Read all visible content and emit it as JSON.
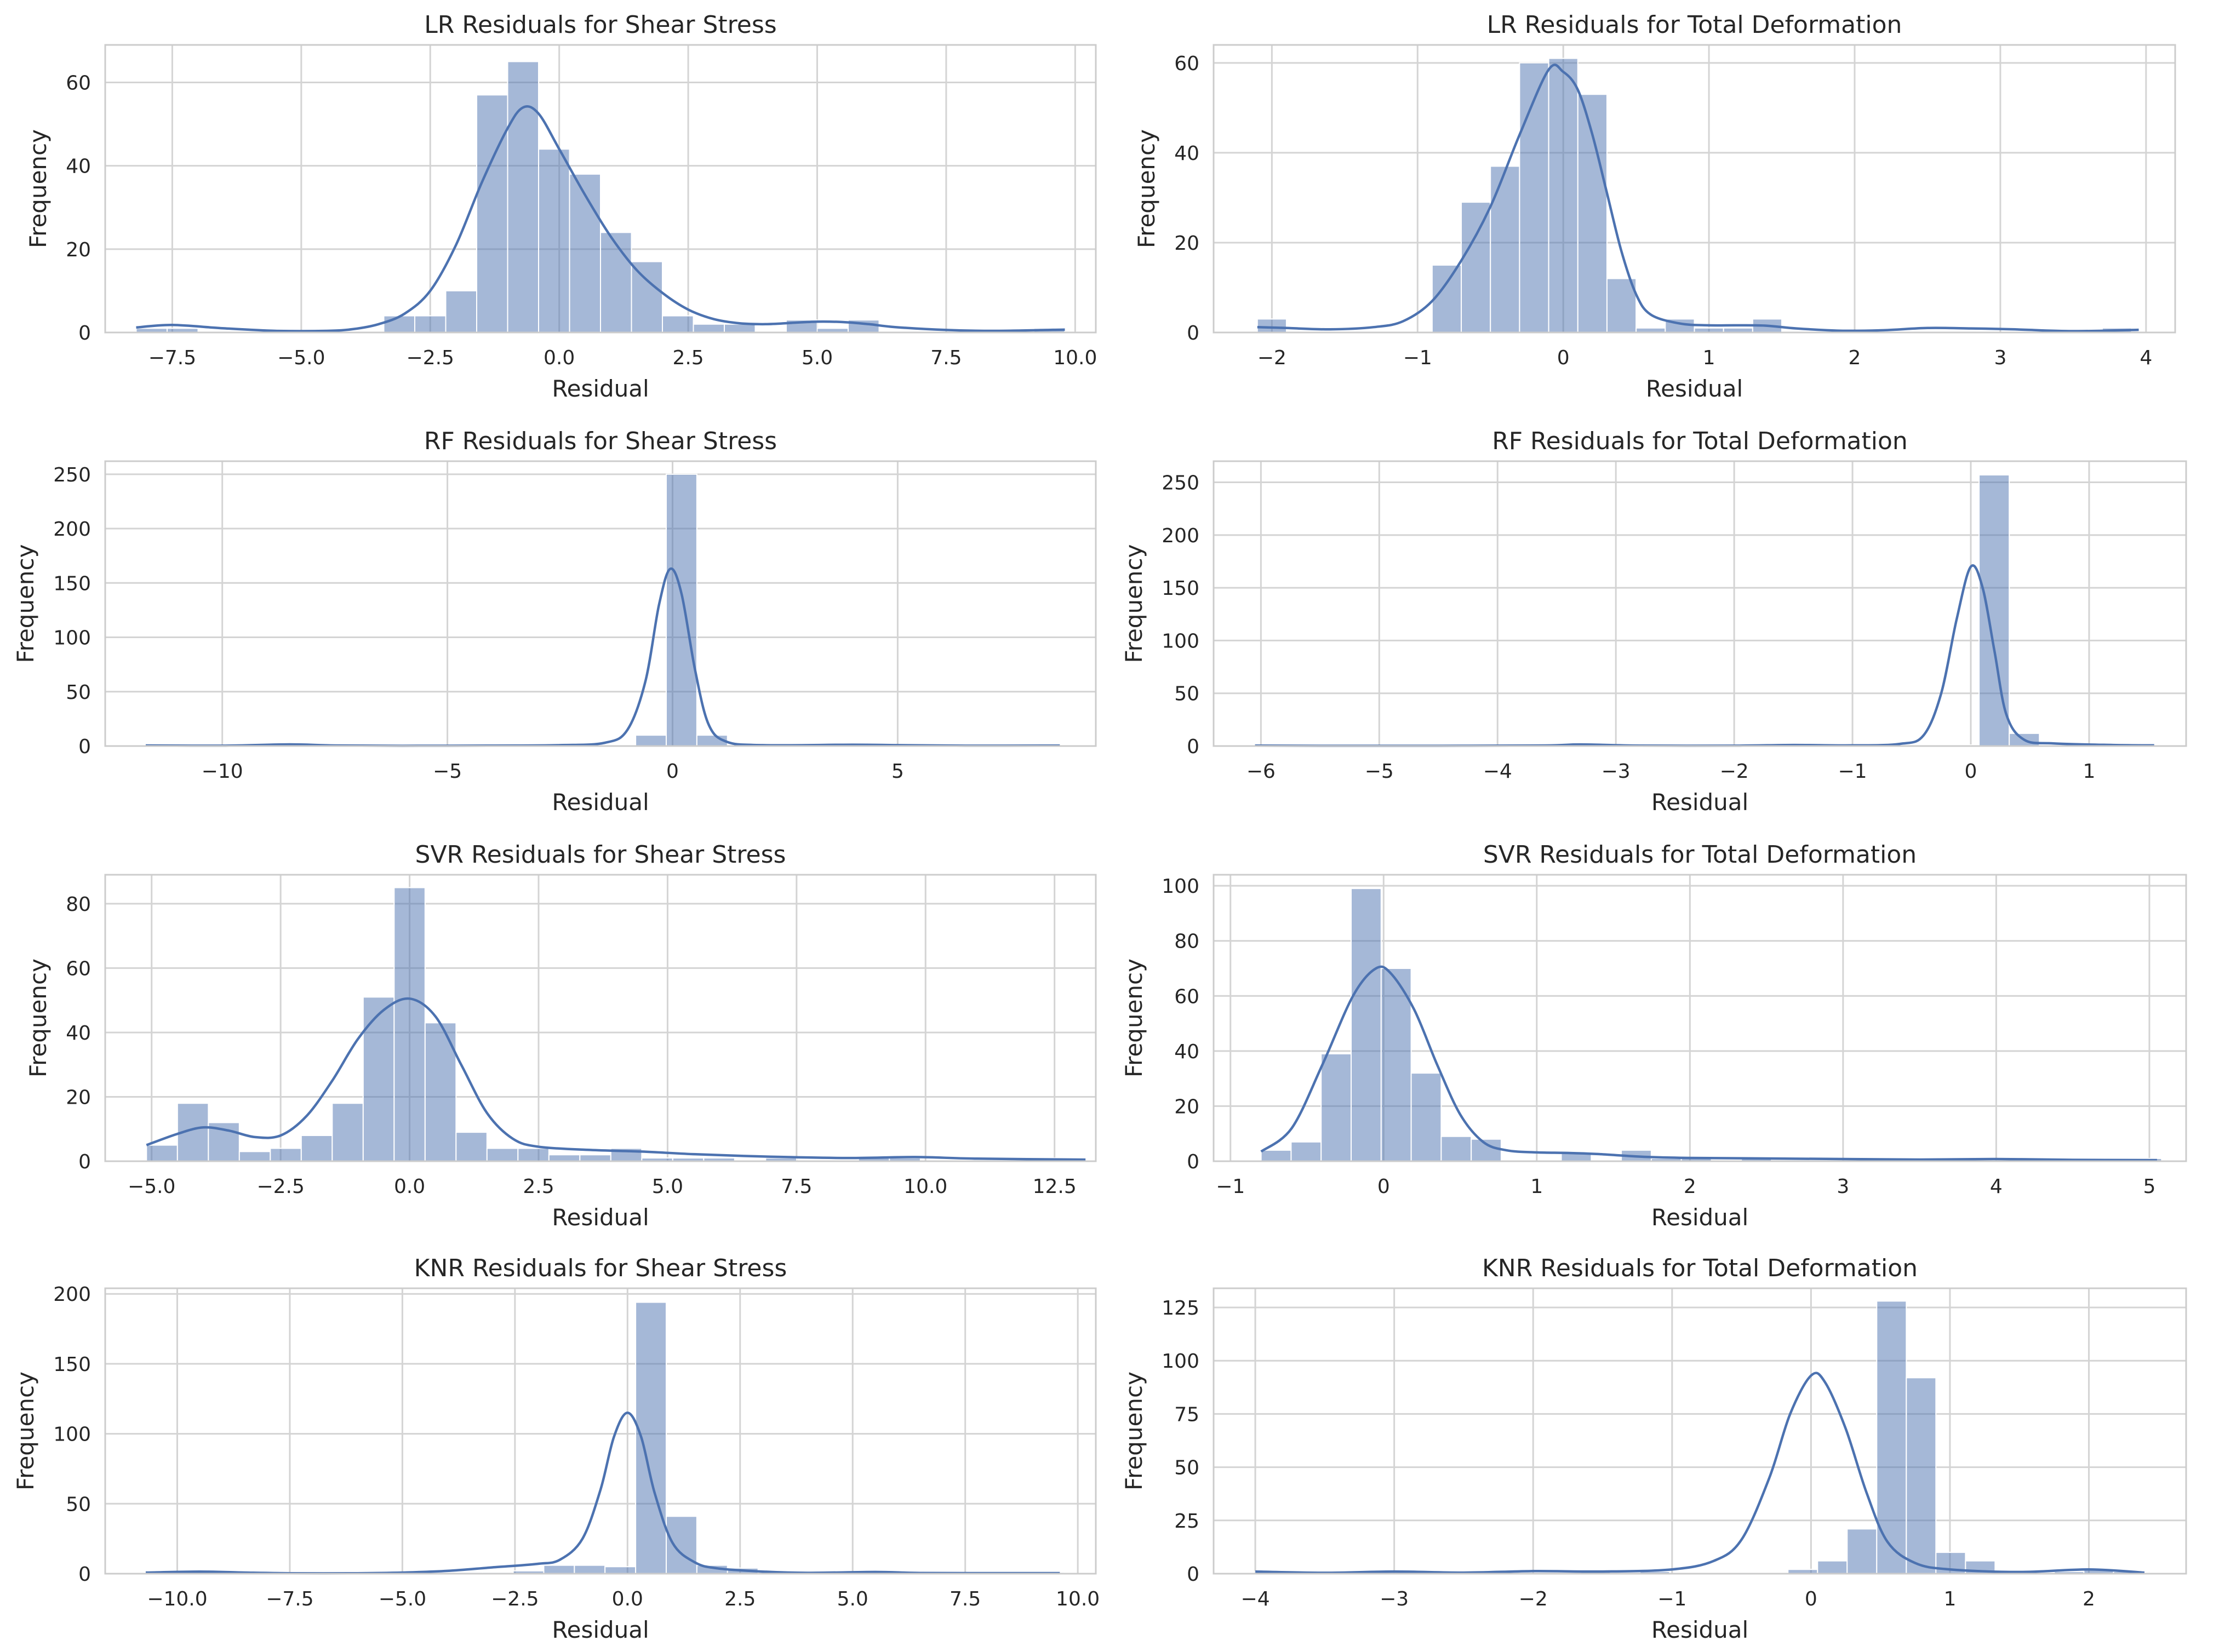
{
  "style": {
    "bar_color": "#4c72b0",
    "grid_color": "#d4d4d4",
    "frame_color": "#cccccc",
    "text_color": "#262626"
  },
  "chart_data": [
    {
      "type": "bar",
      "subtype": "histogram-with-kde",
      "title": "LR Residuals for Shear Stress",
      "xlabel": "Residual",
      "ylabel": "Frequency",
      "xlim": [
        -8.8,
        10.4
      ],
      "ylim": [
        0,
        69
      ],
      "xticks": [
        -7.5,
        -5.0,
        -2.5,
        0.0,
        2.5,
        5.0,
        7.5,
        10.0
      ],
      "xtick_labels": [
        "−7.5",
        "−5.0",
        "−2.5",
        "0.0",
        "2.5",
        "5.0",
        "7.5",
        "10.0"
      ],
      "yticks": [
        0,
        20,
        40,
        60
      ],
      "ytick_labels": [
        "0",
        "20",
        "40",
        "60"
      ],
      "bin_start": -8.2,
      "bin_width": 0.6,
      "values": [
        1,
        1,
        0,
        0,
        0,
        0,
        0,
        0,
        4,
        4,
        10,
        57,
        65,
        44,
        38,
        24,
        17,
        4,
        2,
        2,
        0,
        3,
        1,
        3,
        0,
        0,
        0,
        0,
        0,
        1
      ],
      "kde": [
        [
          -8.2,
          1.2
        ],
        [
          -7.5,
          1.8
        ],
        [
          -6.5,
          1.0
        ],
        [
          -5.5,
          0.4
        ],
        [
          -4.5,
          0.4
        ],
        [
          -4.0,
          0.8
        ],
        [
          -3.5,
          2.0
        ],
        [
          -3.0,
          4.5
        ],
        [
          -2.5,
          10
        ],
        [
          -2.0,
          21
        ],
        [
          -1.5,
          36
        ],
        [
          -1.0,
          49
        ],
        [
          -0.7,
          54
        ],
        [
          -0.4,
          52.5
        ],
        [
          0.0,
          44
        ],
        [
          0.5,
          33
        ],
        [
          1.0,
          23
        ],
        [
          1.5,
          15
        ],
        [
          2.0,
          9.5
        ],
        [
          2.5,
          5.5
        ],
        [
          3.0,
          3.2
        ],
        [
          3.5,
          2.2
        ],
        [
          4.0,
          2.0
        ],
        [
          4.5,
          2.3
        ],
        [
          5.0,
          2.6
        ],
        [
          5.5,
          2.5
        ],
        [
          6.0,
          2.0
        ],
        [
          6.5,
          1.3
        ],
        [
          7.5,
          0.6
        ],
        [
          8.5,
          0.4
        ],
        [
          9.8,
          0.7
        ]
      ]
    },
    {
      "type": "bar",
      "subtype": "histogram-with-kde",
      "title": "LR Residuals for Total Deformation",
      "xlabel": "Residual",
      "ylabel": "Frequency",
      "xlim": [
        -2.4,
        4.2
      ],
      "ylim": [
        0,
        64
      ],
      "xticks": [
        -2,
        -1,
        0,
        1,
        2,
        3,
        4
      ],
      "xtick_labels": [
        "−2",
        "−1",
        "0",
        "1",
        "2",
        "3",
        "4"
      ],
      "yticks": [
        0,
        20,
        40,
        60
      ],
      "ytick_labels": [
        "0",
        "20",
        "40",
        "60"
      ],
      "bin_start": -2.1,
      "bin_width": 0.2,
      "values": [
        3,
        0,
        0,
        0,
        0,
        0,
        15,
        29,
        37,
        60,
        61,
        53,
        12,
        1,
        3,
        1,
        1,
        3,
        0,
        0,
        0,
        0,
        0,
        0,
        0,
        0,
        0,
        0,
        0,
        1
      ],
      "kde": [
        [
          -2.1,
          1.2
        ],
        [
          -1.9,
          1.0
        ],
        [
          -1.6,
          0.7
        ],
        [
          -1.3,
          1.2
        ],
        [
          -1.1,
          2.5
        ],
        [
          -0.9,
          7
        ],
        [
          -0.7,
          16
        ],
        [
          -0.5,
          28
        ],
        [
          -0.3,
          44
        ],
        [
          -0.1,
          58.5
        ],
        [
          0.0,
          58
        ],
        [
          0.1,
          54
        ],
        [
          0.2,
          44
        ],
        [
          0.3,
          31
        ],
        [
          0.4,
          18
        ],
        [
          0.5,
          8.5
        ],
        [
          0.6,
          4
        ],
        [
          0.8,
          2.0
        ],
        [
          1.0,
          1.6
        ],
        [
          1.2,
          1.6
        ],
        [
          1.4,
          1.5
        ],
        [
          1.6,
          0.9
        ],
        [
          1.9,
          0.4
        ],
        [
          2.2,
          0.5
        ],
        [
          2.5,
          1.0
        ],
        [
          2.8,
          0.9
        ],
        [
          3.1,
          0.7
        ],
        [
          3.5,
          0.3
        ],
        [
          3.95,
          0.6
        ]
      ]
    },
    {
      "type": "bar",
      "subtype": "histogram-with-kde",
      "title": "RF Residuals for Shear Stress",
      "xlabel": "Residual",
      "ylabel": "Frequency",
      "xlim": [
        -12.6,
        9.4
      ],
      "ylim": [
        0,
        262
      ],
      "xticks": [
        -10,
        -5,
        0,
        5
      ],
      "xtick_labels": [
        "−10",
        "−5",
        "0",
        "5"
      ],
      "yticks": [
        0,
        50,
        100,
        150,
        200,
        250
      ],
      "ytick_labels": [
        "0",
        "50",
        "100",
        "150",
        "200",
        "250"
      ],
      "bin_start": -11.7,
      "bin_width": 0.68,
      "values": [
        1,
        0,
        0,
        0,
        2,
        0,
        0,
        0,
        0,
        0,
        0,
        0,
        1,
        1,
        1,
        1,
        10,
        250,
        10,
        0,
        0,
        0,
        0,
        1,
        1,
        0,
        0,
        0,
        0,
        1
      ],
      "kde": [
        [
          -11.7,
          0.5
        ],
        [
          -10.0,
          0.3
        ],
        [
          -8.5,
          1.5
        ],
        [
          -7.5,
          0.5
        ],
        [
          -6.0,
          0.2
        ],
        [
          -4.0,
          0.4
        ],
        [
          -2.5,
          0.8
        ],
        [
          -1.5,
          3
        ],
        [
          -1.0,
          15
        ],
        [
          -0.6,
          60
        ],
        [
          -0.3,
          130
        ],
        [
          -0.05,
          163
        ],
        [
          0.2,
          140
        ],
        [
          0.5,
          70
        ],
        [
          0.8,
          20
        ],
        [
          1.2,
          4
        ],
        [
          2.0,
          0.8
        ],
        [
          4.0,
          1.2
        ],
        [
          5.0,
          0.8
        ],
        [
          6.5,
          0.3
        ],
        [
          8.6,
          0.4
        ]
      ]
    },
    {
      "type": "bar",
      "subtype": "histogram-with-kde",
      "title": "RF Residuals for Total Deformation",
      "xlabel": "Residual",
      "ylabel": "Frequency",
      "xlim": [
        -6.4,
        1.82
      ],
      "ylim": [
        0,
        270
      ],
      "xticks": [
        -6,
        -5,
        -4,
        -3,
        -2,
        -1,
        0,
        1
      ],
      "xtick_labels": [
        "−6",
        "−5",
        "−4",
        "−3",
        "−2",
        "−1",
        "0",
        "1"
      ],
      "yticks": [
        0,
        50,
        100,
        150,
        200,
        250
      ],
      "ytick_labels": [
        "0",
        "50",
        "100",
        "150",
        "200",
        "250"
      ],
      "bin_start": -6.05,
      "bin_width": 0.255,
      "values": [
        1,
        0,
        0,
        0,
        0,
        0,
        0,
        0,
        0,
        0,
        0,
        1,
        0,
        0,
        0,
        0,
        0,
        0,
        1,
        0,
        0,
        0,
        0,
        1,
        257,
        12,
        1,
        1,
        0,
        1
      ],
      "kde": [
        [
          -6.05,
          0.4
        ],
        [
          -5.5,
          0.2
        ],
        [
          -4.5,
          0.2
        ],
        [
          -3.6,
          0.5
        ],
        [
          -3.3,
          1.5
        ],
        [
          -2.8,
          0.4
        ],
        [
          -2.0,
          0.3
        ],
        [
          -1.5,
          1.0
        ],
        [
          -1.0,
          0.6
        ],
        [
          -0.6,
          2
        ],
        [
          -0.4,
          10
        ],
        [
          -0.25,
          50
        ],
        [
          -0.12,
          120
        ],
        [
          0.0,
          170
        ],
        [
          0.1,
          150
        ],
        [
          0.2,
          90
        ],
        [
          0.3,
          30
        ],
        [
          0.45,
          6
        ],
        [
          0.7,
          2.5
        ],
        [
          1.2,
          1.0
        ],
        [
          1.55,
          0.6
        ]
      ]
    },
    {
      "type": "bar",
      "subtype": "histogram-with-kde",
      "title": "SVR Residuals for Shear Stress",
      "xlabel": "Residual",
      "ylabel": "Frequency",
      "xlim": [
        -5.9,
        13.3
      ],
      "ylim": [
        0,
        89
      ],
      "xticks": [
        -5.0,
        -2.5,
        0.0,
        2.5,
        5.0,
        7.5,
        10.0,
        12.5
      ],
      "xtick_labels": [
        "−5.0",
        "−2.5",
        "0.0",
        "2.5",
        "5.0",
        "7.5",
        "10.0",
        "12.5"
      ],
      "yticks": [
        0,
        20,
        40,
        60,
        80
      ],
      "ytick_labels": [
        "0",
        "20",
        "40",
        "60",
        "80"
      ],
      "bin_start": -5.1,
      "bin_width": 0.6,
      "values": [
        5,
        18,
        12,
        3,
        4,
        8,
        18,
        51,
        85,
        43,
        9,
        4,
        4,
        2,
        2,
        4,
        1,
        1,
        1,
        0,
        1,
        0,
        0,
        1,
        1,
        0,
        0,
        0,
        0,
        1
      ],
      "kde": [
        [
          -5.1,
          5
        ],
        [
          -4.5,
          8.5
        ],
        [
          -4.0,
          10.5
        ],
        [
          -3.5,
          9.5
        ],
        [
          -3.0,
          7.5
        ],
        [
          -2.5,
          8
        ],
        [
          -2.0,
          14
        ],
        [
          -1.5,
          25
        ],
        [
          -1.0,
          38
        ],
        [
          -0.5,
          47
        ],
        [
          0.0,
          50.5
        ],
        [
          0.5,
          45
        ],
        [
          1.0,
          30
        ],
        [
          1.5,
          15
        ],
        [
          2.0,
          7
        ],
        [
          2.5,
          4.5
        ],
        [
          3.5,
          3.5
        ],
        [
          4.5,
          3.0
        ],
        [
          5.5,
          2.2
        ],
        [
          7.0,
          1.4
        ],
        [
          8.5,
          1.0
        ],
        [
          9.8,
          1.3
        ],
        [
          11.0,
          0.8
        ],
        [
          13.1,
          0.5
        ]
      ]
    },
    {
      "type": "bar",
      "subtype": "histogram-with-kde",
      "title": "SVR Residuals for Total Deformation",
      "xlabel": "Residual",
      "ylabel": "Frequency",
      "xlim": [
        -1.11,
        5.24
      ],
      "ylim": [
        0,
        104
      ],
      "xticks": [
        -1,
        0,
        1,
        2,
        3,
        4,
        5
      ],
      "xtick_labels": [
        "−1",
        "0",
        "1",
        "2",
        "3",
        "4",
        "5"
      ],
      "yticks": [
        0,
        20,
        40,
        60,
        80,
        100
      ],
      "ytick_labels": [
        "0",
        "20",
        "40",
        "60",
        "80",
        "100"
      ],
      "bin_start": -0.8,
      "bin_width": 0.196,
      "values": [
        4,
        7,
        39,
        99,
        70,
        32,
        9,
        8,
        0,
        0,
        3,
        0,
        4,
        1,
        1,
        0,
        1,
        0,
        0,
        0,
        0,
        0,
        0,
        0,
        0,
        0,
        0,
        0,
        0,
        1
      ],
      "kde": [
        [
          -0.8,
          3.5
        ],
        [
          -0.6,
          12
        ],
        [
          -0.4,
          35
        ],
        [
          -0.2,
          60
        ],
        [
          -0.05,
          70
        ],
        [
          0.05,
          68
        ],
        [
          0.2,
          55
        ],
        [
          0.35,
          35
        ],
        [
          0.5,
          17
        ],
        [
          0.65,
          7
        ],
        [
          0.8,
          4
        ],
        [
          1.0,
          3.2
        ],
        [
          1.2,
          3.0
        ],
        [
          1.4,
          2.6
        ],
        [
          1.7,
          1.6
        ],
        [
          2.0,
          1.2
        ],
        [
          2.5,
          1.0
        ],
        [
          3.0,
          0.8
        ],
        [
          3.5,
          0.6
        ],
        [
          4.0,
          0.8
        ],
        [
          4.5,
          0.5
        ],
        [
          5.05,
          0.4
        ]
      ]
    },
    {
      "type": "bar",
      "subtype": "histogram-with-kde",
      "title": "KNR Residuals for Shear Stress",
      "xlabel": "Residual",
      "ylabel": "Frequency",
      "xlim": [
        -11.6,
        10.4
      ],
      "ylim": [
        0,
        204
      ],
      "xticks": [
        -10.0,
        -7.5,
        -5.0,
        -2.5,
        0.0,
        2.5,
        5.0,
        7.5,
        10.0
      ],
      "xtick_labels": [
        "−10.0",
        "−7.5",
        "−5.0",
        "−2.5",
        "0.0",
        "2.5",
        "5.0",
        "7.5",
        "10.0"
      ],
      "yticks": [
        0,
        50,
        100,
        150,
        200
      ],
      "ytick_labels": [
        "0",
        "50",
        "100",
        "150",
        "200"
      ],
      "bin_start": -10.7,
      "bin_width": 0.68,
      "values": [
        1,
        1,
        0,
        0,
        0,
        0,
        0,
        0,
        0,
        0,
        1,
        1,
        2,
        6,
        6,
        5,
        194,
        41,
        6,
        4,
        1,
        0,
        0,
        1,
        1,
        0,
        0,
        0,
        0,
        1
      ],
      "kde": [
        [
          -10.7,
          0.8
        ],
        [
          -9.5,
          1.5
        ],
        [
          -8.5,
          0.8
        ],
        [
          -7.5,
          0.3
        ],
        [
          -6.0,
          0.3
        ],
        [
          -5.0,
          0.8
        ],
        [
          -4.0,
          2.0
        ],
        [
          -3.0,
          4.5
        ],
        [
          -2.0,
          7
        ],
        [
          -1.5,
          10
        ],
        [
          -1.0,
          25
        ],
        [
          -0.6,
          60
        ],
        [
          -0.3,
          98
        ],
        [
          0.0,
          115
        ],
        [
          0.3,
          98
        ],
        [
          0.6,
          58
        ],
        [
          1.0,
          22
        ],
        [
          1.5,
          8
        ],
        [
          2.0,
          3.8
        ],
        [
          3.0,
          1.5
        ],
        [
          4.0,
          0.6
        ],
        [
          5.5,
          1.2
        ],
        [
          6.5,
          0.5
        ],
        [
          8.0,
          0.4
        ],
        [
          9.6,
          0.4
        ]
      ]
    },
    {
      "type": "bar",
      "subtype": "histogram-with-kde",
      "title": "KNR Residuals for Total Deformation",
      "xlabel": "Residual",
      "ylabel": "Frequency",
      "xlim": [
        -4.3,
        2.7
      ],
      "ylim": [
        0,
        134
      ],
      "xticks": [
        -4,
        -3,
        -2,
        -1,
        0,
        1,
        2
      ],
      "xtick_labels": [
        "−4",
        "−3",
        "−2",
        "−1",
        "0",
        "1",
        "2"
      ],
      "yticks": [
        0,
        25,
        50,
        75,
        100,
        125
      ],
      "ytick_labels": [
        "0",
        "25",
        "50",
        "75",
        "100",
        "125"
      ],
      "bin_start": -4.0,
      "bin_width": 0.213,
      "values": [
        1,
        0,
        0,
        0,
        1,
        0,
        0,
        0,
        0,
        0,
        0,
        1,
        0,
        1,
        0,
        0,
        0,
        0,
        2,
        6,
        21,
        128,
        92,
        10,
        6,
        0,
        0,
        1,
        2,
        1
      ],
      "kde": [
        [
          -4.0,
          1.0
        ],
        [
          -3.5,
          0.4
        ],
        [
          -3.0,
          1.0
        ],
        [
          -2.5,
          0.5
        ],
        [
          -2.0,
          1.2
        ],
        [
          -1.5,
          1.0
        ],
        [
          -1.0,
          2.0
        ],
        [
          -0.7,
          6
        ],
        [
          -0.5,
          16
        ],
        [
          -0.3,
          45
        ],
        [
          -0.15,
          75
        ],
        [
          0.0,
          93
        ],
        [
          0.1,
          90
        ],
        [
          0.25,
          68
        ],
        [
          0.4,
          38
        ],
        [
          0.55,
          15
        ],
        [
          0.75,
          5
        ],
        [
          1.0,
          2.0
        ],
        [
          1.5,
          0.8
        ],
        [
          2.0,
          2.0
        ],
        [
          2.4,
          0.5
        ]
      ]
    }
  ]
}
